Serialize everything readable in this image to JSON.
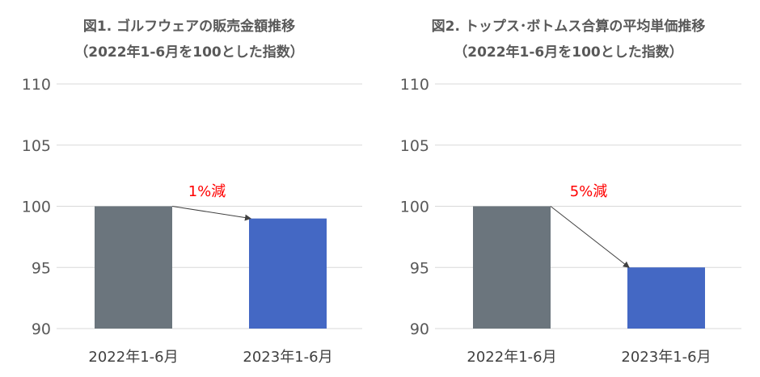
{
  "chart_data": [
    {
      "type": "bar",
      "title": "図1. ゴルフウェアの販売金額推移",
      "subtitle": "（2022年1-6月を100とした指数）",
      "categories": [
        "2022年1-6月",
        "2023年1-6月"
      ],
      "values": [
        100,
        99
      ],
      "ylim": [
        90,
        110
      ],
      "yticks": [
        "110",
        "105",
        "100",
        "95",
        "90"
      ],
      "grid": true,
      "bar_colors": [
        "#6b757d",
        "#4468c4"
      ],
      "annotation": "1%減",
      "annotation_color": "#ff0000"
    },
    {
      "type": "bar",
      "title": "図2. トップス･ボトムス合算の平均単価推移",
      "subtitle": "（2022年1-6月を100とした指数）",
      "categories": [
        "2022年1-6月",
        "2023年1-6月"
      ],
      "values": [
        100,
        95
      ],
      "ylim": [
        90,
        110
      ],
      "yticks": [
        "110",
        "105",
        "100",
        "95",
        "90"
      ],
      "grid": true,
      "bar_colors": [
        "#6b757d",
        "#4468c4"
      ],
      "annotation": "5%減",
      "annotation_color": "#ff0000"
    }
  ]
}
